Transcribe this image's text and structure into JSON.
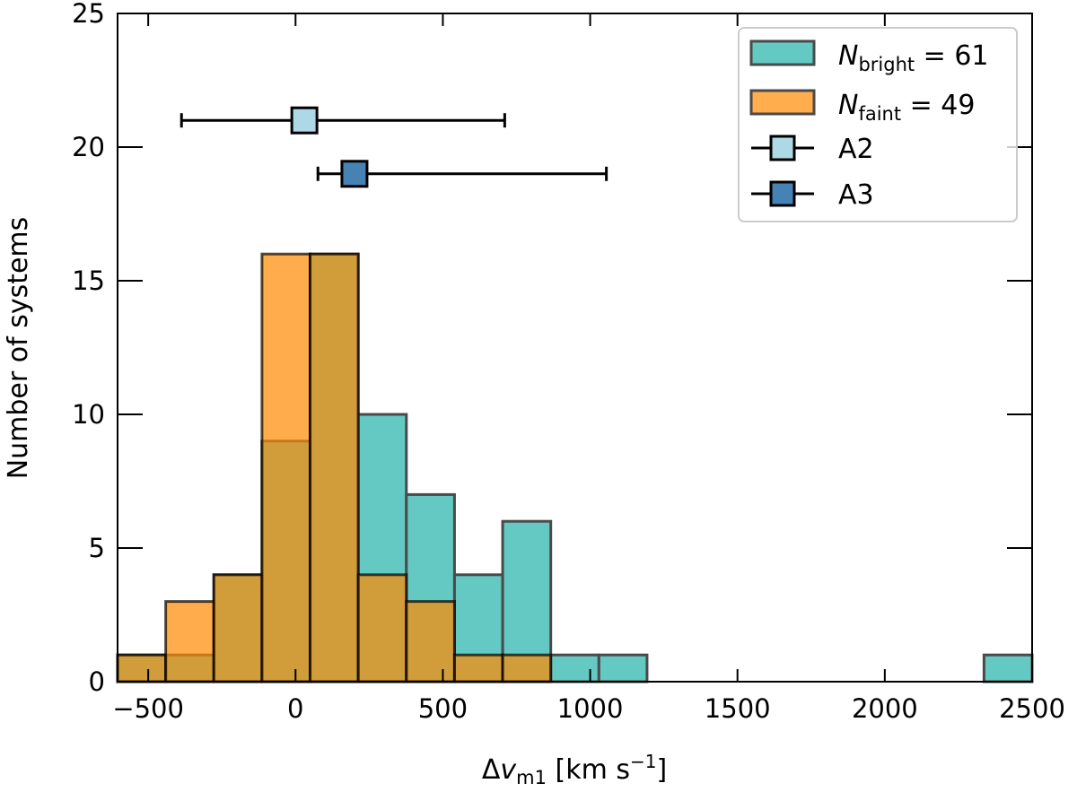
{
  "chart_data": {
    "type": "bar",
    "subtype": "histogram-overlay-with-errorbars",
    "xlabel": "Δv",
    "xlabel_sub": "m1",
    "xlabel_unit_pre": " [km s",
    "xlabel_unit_sup": "−1",
    "xlabel_unit_post": "]",
    "ylabel": "Number of systems",
    "xlim": [
      -604,
      2500
    ],
    "ylim": [
      0,
      25
    ],
    "xticks": [
      -500,
      0,
      500,
      1000,
      1500,
      2000,
      2500
    ],
    "xtick_labels": [
      "−500",
      "0",
      "500",
      "1000",
      "1500",
      "2000",
      "2500"
    ],
    "yticks": [
      0,
      5,
      10,
      15,
      20,
      25
    ],
    "ytick_labels": [
      "0",
      "5",
      "10",
      "15",
      "20",
      "25"
    ],
    "grid": false,
    "legend_position": "top-right",
    "bin_range": [
      -604,
      2500
    ],
    "series": [
      {
        "name": "N_bright = 61",
        "legend_main": "N",
        "legend_sub": "bright",
        "legend_rest": " = 61",
        "color": "#63c9c2",
        "edge_color": "#4a4a4a",
        "counts": [
          1,
          1,
          4,
          9,
          16,
          10,
          7,
          4,
          6,
          1,
          1,
          0,
          0,
          0,
          0,
          0,
          0,
          0,
          1
        ]
      },
      {
        "name": "N_faint = 49",
        "legend_main": "N",
        "legend_sub": "faint",
        "legend_rest": " = 49",
        "color": "#ffad4d",
        "overlay_color": "#ff8a00",
        "overlay_alpha": 0.7,
        "edge_color": "#000000",
        "counts": [
          1,
          3,
          4,
          16,
          16,
          4,
          3,
          1,
          1,
          0,
          0,
          0,
          0,
          0,
          0,
          0,
          0,
          0,
          0
        ]
      }
    ],
    "points": [
      {
        "name": "A2",
        "x": 30,
        "y": 21,
        "xerr_low": -387,
        "xerr_high": 710,
        "color": "#add8e6"
      },
      {
        "name": "A3",
        "x": 200,
        "y": 19,
        "xerr_low": 76,
        "xerr_high": 1055,
        "color": "#4682b4"
      }
    ]
  }
}
